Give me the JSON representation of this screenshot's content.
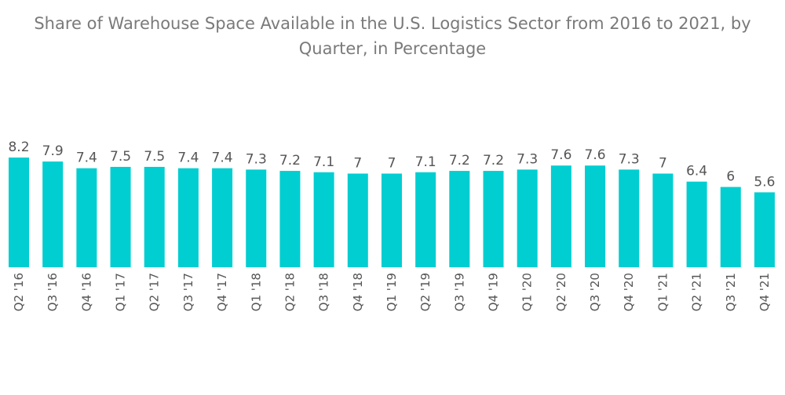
{
  "title_line1": "Share of Warehouse Space Available in the U.S. Logistics Sector from 2016 to 2021, by",
  "title_line2": "Quarter, in Percentage",
  "colors": {
    "bar": "#00CED1",
    "text": "#555555",
    "title": "#7a7a7a"
  },
  "chart_data": {
    "type": "bar",
    "title": "Share of Warehouse Space Available in the U.S. Logistics Sector from 2016 to 2021, by Quarter, in Percentage",
    "categories": [
      "Q2 '16",
      "Q3 '16",
      "Q4 '16",
      "Q1 '17",
      "Q2 '17",
      "Q3 '17",
      "Q4 '17",
      "Q1 '18",
      "Q2 '18",
      "Q3 '18",
      "Q4 '18",
      "Q1 '19",
      "Q2 '19",
      "Q3 '19",
      "Q4 '19",
      "Q1 '20",
      "Q2 '20",
      "Q3 '20",
      "Q4 '20",
      "Q1 '21",
      "Q2 '21",
      "Q3 '21",
      "Q4 '21"
    ],
    "values": [
      8.2,
      7.9,
      7.4,
      7.5,
      7.5,
      7.4,
      7.4,
      7.3,
      7.2,
      7.1,
      7,
      7,
      7.1,
      7.2,
      7.2,
      7.3,
      7.6,
      7.6,
      7.3,
      7,
      6.4,
      6,
      5.6
    ],
    "value_labels": [
      "8.2",
      "7.9",
      "7.4",
      "7.5",
      "7.5",
      "7.4",
      "7.4",
      "7.3",
      "7.2",
      "7.1",
      "7",
      "7",
      "7.1",
      "7.2",
      "7.2",
      "7.3",
      "7.6",
      "7.6",
      "7.3",
      "7",
      "6.4",
      "6",
      "5.6"
    ],
    "xlabel": "",
    "ylabel": "",
    "ylim": [
      0,
      8.2
    ],
    "grid": false,
    "legend": "none"
  }
}
